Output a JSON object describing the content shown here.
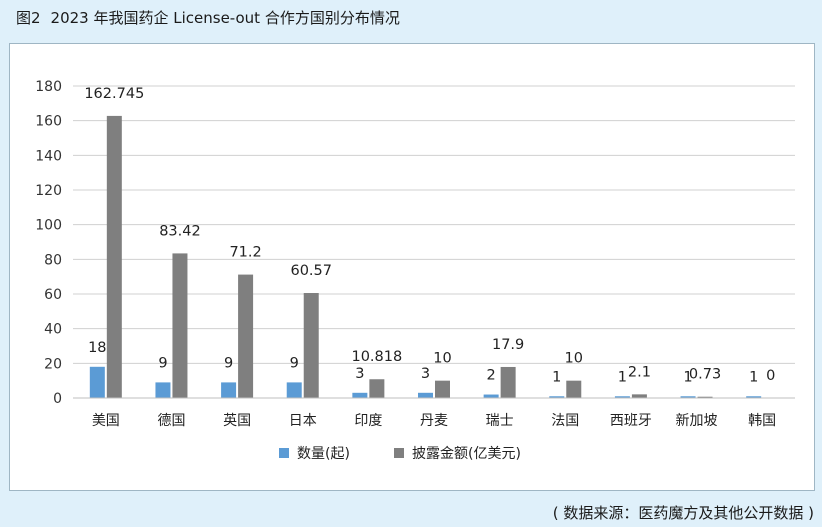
{
  "figure": {
    "label": "图2",
    "title": "2023 年我国药企 License-out 合作方国别分布情况",
    "source": "( 数据来源：医药魔方及其他公开数据 )"
  },
  "chart_data": {
    "type": "bar",
    "categories": [
      "美国",
      "德国",
      "英国",
      "日本",
      "印度",
      "丹麦",
      "瑞士",
      "法国",
      "西班牙",
      "新加坡",
      "韩国"
    ],
    "series": [
      {
        "name": "数量(起)",
        "color": "#5b9bd5",
        "values": [
          18,
          9,
          9,
          9,
          3,
          3,
          2,
          1,
          1,
          1,
          1
        ],
        "labels": [
          "18",
          "9",
          "9",
          "9",
          "3",
          "3",
          "2",
          "1",
          "1",
          "1",
          "1"
        ]
      },
      {
        "name": "披露金额(亿美元)",
        "color": "#7f7f7f",
        "values": [
          162.745,
          83.42,
          71.2,
          60.57,
          10.818,
          10,
          17.9,
          10,
          2.1,
          0.73,
          0
        ],
        "labels": [
          "162.745",
          "83.42",
          "71.2",
          "60.57",
          "10.818",
          "10",
          "17.9",
          "10",
          "2.1",
          "0.73",
          "0"
        ]
      }
    ],
    "yticks": [
      "0",
      "20",
      "40",
      "60",
      "80",
      "100",
      "120",
      "140",
      "160",
      "180"
    ],
    "ylim": [
      0,
      180
    ],
    "grid": true,
    "legend_position": "bottom"
  }
}
